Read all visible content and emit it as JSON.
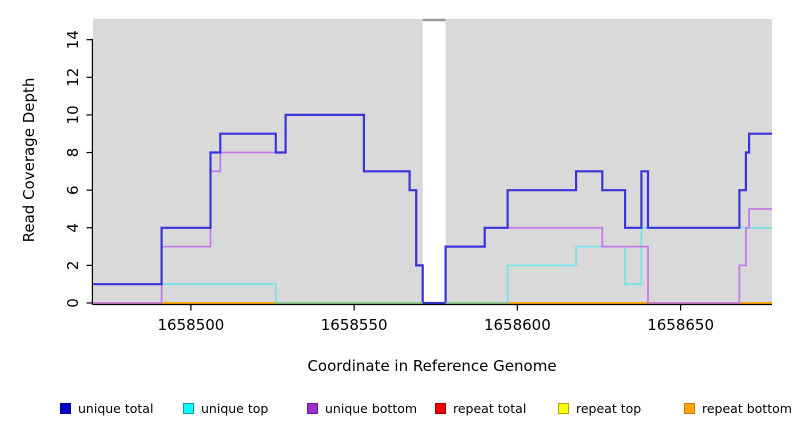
{
  "chart_data": {
    "type": "line",
    "subtype": "step-coverage",
    "title": "",
    "xlabel": "Coordinate in Reference Genome",
    "ylabel": "Read Coverage Depth",
    "xlim": [
      1658470,
      1658678
    ],
    "ylim": [
      0,
      15.1
    ],
    "xticks": [
      1658500,
      1658550,
      1658600,
      1658650
    ],
    "yticks": [
      0,
      2,
      4,
      6,
      8,
      10,
      12,
      14
    ],
    "grid": false,
    "legend_position": "bottom",
    "panel_background": "#d9d9d9",
    "gap_region": {
      "from": 1658571,
      "to": 1658578,
      "fill": "#ffffff",
      "cap_color": "#999999"
    },
    "series": [
      {
        "name": "repeat total",
        "line_color": "#dd2222",
        "legend_color": "#ee0000",
        "legend_border": "#990000",
        "width": 1.4,
        "steps": [
          [
            1658470,
            0
          ]
        ]
      },
      {
        "name": "repeat top",
        "line_color": "#eeee00",
        "legend_color": "#ffff00",
        "legend_border": "#aaaa00",
        "width": 1.4,
        "steps": [
          [
            1658470,
            0
          ]
        ]
      },
      {
        "name": "repeat bottom",
        "line_color": "#ffa500",
        "legend_color": "#ffa500",
        "legend_border": "#cc7a00",
        "width": 1.8,
        "steps": [
          [
            1658470,
            0
          ]
        ]
      },
      {
        "name": "unique top",
        "line_color": "#78e3e3",
        "legend_color": "#00ffff",
        "legend_border": "#00a0a0",
        "width": 1.8,
        "steps": [
          [
            1658470,
            1
          ],
          [
            1658526,
            0
          ],
          [
            1658597,
            2
          ],
          [
            1658618,
            3
          ],
          [
            1658633,
            1
          ],
          [
            1658638,
            4
          ]
        ]
      },
      {
        "name": "unique bottom",
        "line_color": "#c37de6",
        "legend_color": "#9932cc",
        "legend_border": "#6a1b9a",
        "width": 1.8,
        "steps": [
          [
            1658470,
            0
          ],
          [
            1658491,
            3
          ],
          [
            1658506,
            7
          ],
          [
            1658509,
            8
          ],
          [
            1658529,
            10
          ],
          [
            1658553,
            7
          ],
          [
            1658567,
            6
          ],
          [
            1658569,
            2
          ],
          [
            1658571,
            0
          ],
          [
            1658578,
            3
          ],
          [
            1658590,
            4
          ],
          [
            1658626,
            3
          ],
          [
            1658640,
            0
          ],
          [
            1658668,
            2
          ],
          [
            1658670,
            4
          ],
          [
            1658671,
            5
          ]
        ]
      },
      {
        "name": "unique total",
        "line_color": "#3a35db",
        "legend_color": "#0000cc",
        "legend_border": "#000099",
        "width": 2.2,
        "steps": [
          [
            1658470,
            1
          ],
          [
            1658491,
            4
          ],
          [
            1658506,
            8
          ],
          [
            1658509,
            9
          ],
          [
            1658526,
            8
          ],
          [
            1658529,
            10
          ],
          [
            1658553,
            7
          ],
          [
            1658567,
            6
          ],
          [
            1658569,
            2
          ],
          [
            1658571,
            0
          ],
          [
            1658578,
            3
          ],
          [
            1658590,
            4
          ],
          [
            1658597,
            6
          ],
          [
            1658618,
            7
          ],
          [
            1658626,
            6
          ],
          [
            1658633,
            4
          ],
          [
            1658638,
            7
          ],
          [
            1658640,
            4
          ],
          [
            1658668,
            6
          ],
          [
            1658670,
            8
          ],
          [
            1658671,
            9
          ]
        ]
      }
    ],
    "zero_line_overlay": [
      {
        "from": 1658526,
        "to": 1658571,
        "color": "#8cc88c"
      },
      {
        "from": 1658578,
        "to": 1658597,
        "color": "#8cc88c"
      }
    ],
    "legend_order": [
      "unique total",
      "unique top",
      "unique bottom",
      "repeat total",
      "repeat top",
      "repeat bottom"
    ]
  }
}
